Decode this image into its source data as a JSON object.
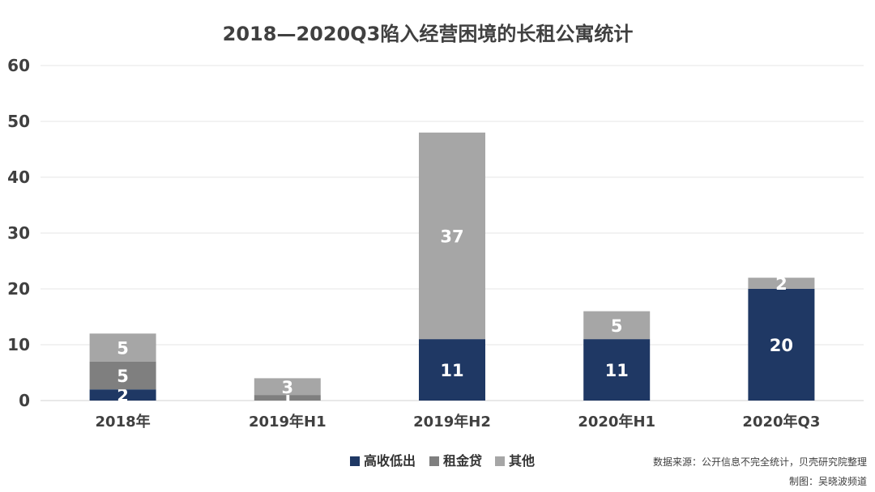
{
  "chart_data": {
    "type": "bar",
    "stacked": true,
    "title": "2018—2020Q3陷入经营困境的长租公寓统计",
    "categories": [
      "2018年",
      "2019年H1",
      "2019年H2",
      "2020年H1",
      "2020年Q3"
    ],
    "series": [
      {
        "name": "高收低出",
        "color": "#1f3864",
        "values": [
          2,
          0,
          11,
          11,
          20
        ]
      },
      {
        "name": "租金贷",
        "color": "#7f7f7f",
        "values": [
          5,
          1,
          0,
          0,
          0
        ]
      },
      {
        "name": "其他",
        "color": "#a6a6a6",
        "values": [
          5,
          3,
          37,
          5,
          2
        ]
      }
    ],
    "ylim": [
      0,
      60
    ],
    "yticks": [
      0,
      10,
      20,
      30,
      40,
      50,
      60
    ],
    "grid": true,
    "legend_position": "bottom-center",
    "xlabel": "",
    "ylabel": ""
  },
  "notes": {
    "source": "数据来源：公开信息不完全统计，贝壳研究院整理",
    "credit": "制图：吴晓波频道"
  }
}
